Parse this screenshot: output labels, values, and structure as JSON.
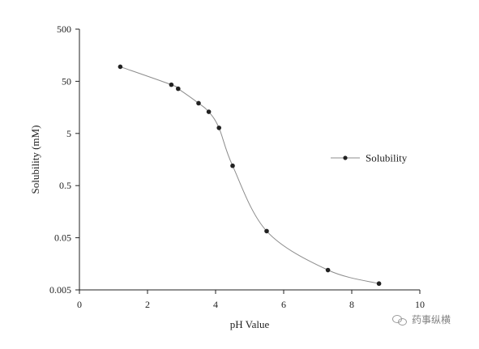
{
  "chart_data": {
    "type": "line",
    "xlabel": "pH Value",
    "ylabel": "Solubility (mM)",
    "xlim": [
      0,
      10
    ],
    "ylim": [
      0.005,
      500
    ],
    "y_scale": "log",
    "x_ticks": [
      "0",
      "2",
      "4",
      "6",
      "8",
      "10"
    ],
    "y_ticks": [
      "500",
      "50",
      "5",
      "0.5",
      "0.05",
      "0.005"
    ],
    "grid": false,
    "legend_position": "right",
    "series": [
      {
        "name": "Solubility",
        "color": "#222222",
        "x": [
          1.2,
          2.7,
          2.9,
          3.5,
          3.8,
          4.1,
          4.5,
          5.5,
          7.3,
          8.8
        ],
        "y": [
          95,
          43,
          36,
          19,
          13,
          6.4,
          1.2,
          0.067,
          0.012,
          0.0066
        ]
      }
    ]
  },
  "watermark": {
    "text": "药事纵横",
    "icon": "wechat-icon"
  }
}
